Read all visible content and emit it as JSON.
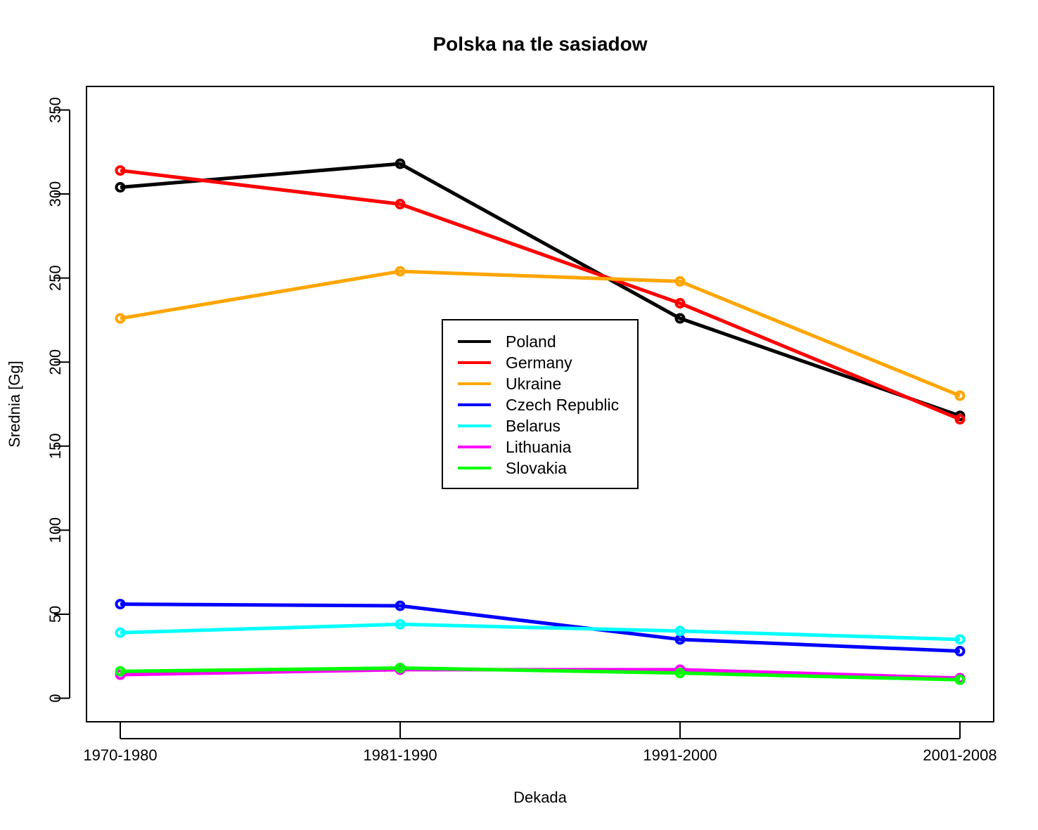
{
  "chart_data": {
    "type": "line",
    "title": "Polska na tle sasiadow",
    "xlabel": "Dekada",
    "ylabel": "Srednia [Gg]",
    "categories": [
      "1970-1980",
      "1981-1990",
      "1991-2000",
      "2001-2008"
    ],
    "y_ticks": [
      0,
      50,
      100,
      150,
      200,
      250,
      300,
      350
    ],
    "y_tick_labels": [
      "0",
      "50",
      "100",
      "150",
      "200",
      "250",
      "300",
      "350"
    ],
    "ylim": [
      -14,
      364
    ],
    "grid": false,
    "legend_position": "center",
    "series": [
      {
        "name": "Poland",
        "color": "#000000",
        "values": [
          304,
          318,
          226,
          168
        ]
      },
      {
        "name": "Germany",
        "color": "#ff0000",
        "values": [
          314,
          294,
          235,
          166
        ]
      },
      {
        "name": "Ukraine",
        "color": "#ffa500",
        "values": [
          226,
          254,
          248,
          180
        ]
      },
      {
        "name": "Czech Republic",
        "color": "#0000ff",
        "values": [
          56,
          55,
          35,
          28
        ]
      },
      {
        "name": "Belarus",
        "color": "#00ffff",
        "values": [
          39,
          44,
          40,
          35
        ]
      },
      {
        "name": "Lithuania",
        "color": "#ff00ff",
        "values": [
          14,
          17,
          17,
          12
        ]
      },
      {
        "name": "Slovakia",
        "color": "#00ff00",
        "values": [
          16,
          18,
          15,
          11
        ]
      }
    ]
  }
}
